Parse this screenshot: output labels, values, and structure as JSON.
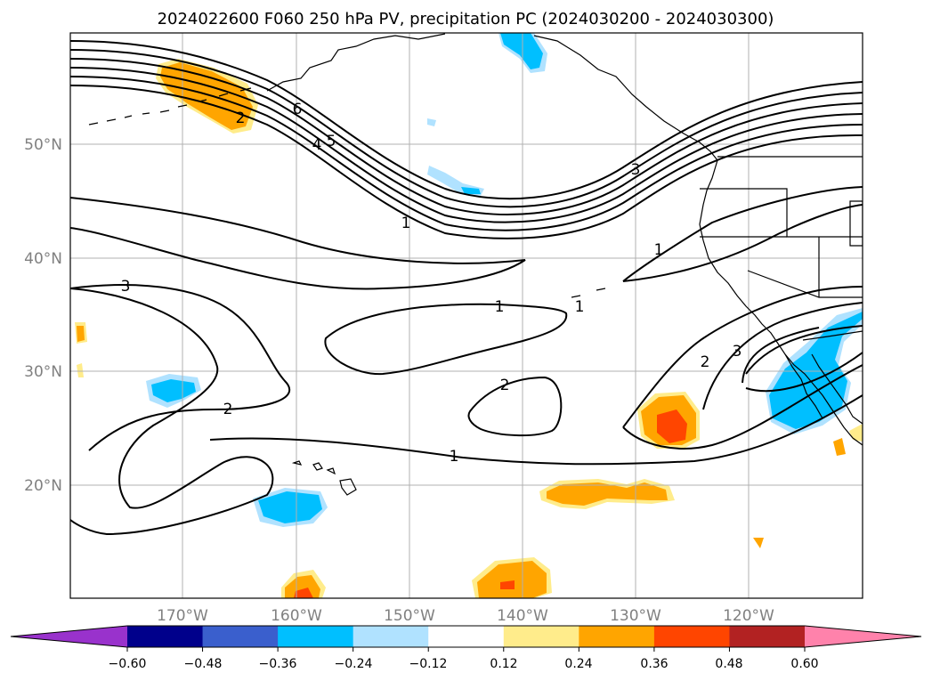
{
  "title": "2024022600 F060 250 hPa PV, precipitation PC (2024030200 - 2024030300)",
  "map": {
    "lat_labels": [
      "50°N",
      "40°N",
      "30°N",
      "20°N"
    ],
    "lon_labels": [
      "170°W",
      "160°W",
      "150°W",
      "140°W",
      "130°W",
      "120°W"
    ],
    "gridlines": true,
    "coastlines": true
  },
  "colorbar": {
    "tick_labels": [
      "−0.60",
      "−0.48",
      "−0.36",
      "−0.24",
      "−0.12",
      "0.12",
      "0.24",
      "0.36",
      "0.48",
      "0.60"
    ],
    "colors": [
      "#9932cc",
      "#00008b",
      "#3a5fcd",
      "#00bfff",
      "#b0e2ff",
      "#ffffff",
      "#ffec8b",
      "#ffa500",
      "#ff4500",
      "#b22222",
      "#ff82ab"
    ],
    "extend": "both"
  },
  "contour_labels": [
    "6",
    "4",
    "5",
    "2",
    "3",
    "1",
    "1",
    "3",
    "1",
    "1",
    "2",
    "2",
    "3",
    "2",
    "1"
  ]
}
